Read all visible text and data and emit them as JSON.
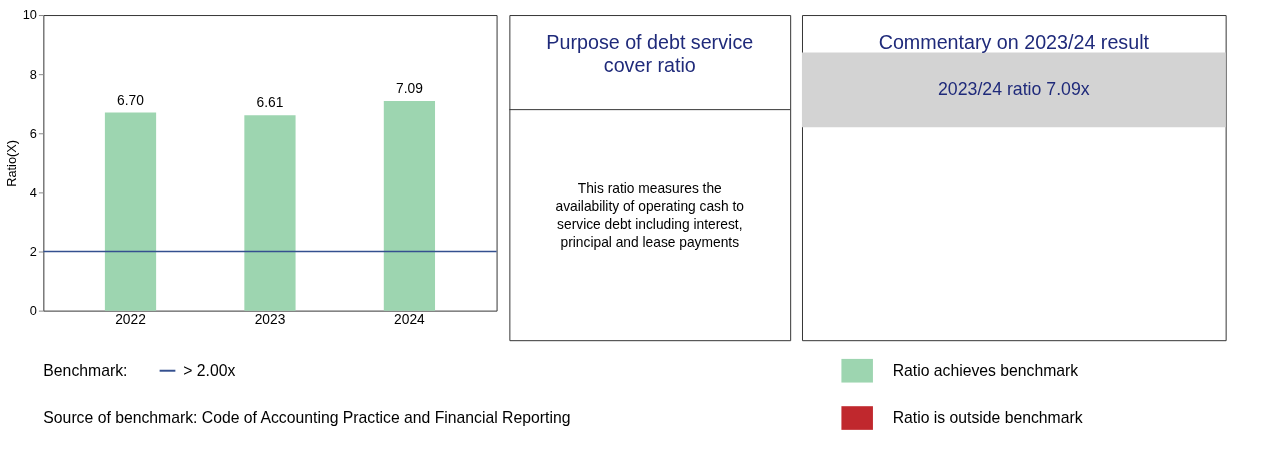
{
  "chart_data": [
    {
      "type": "bar",
      "categories": [
        "2022",
        "2023",
        "2024"
      ],
      "ylabel": "Ratio(X)",
      "ylim": [
        0,
        10
      ],
      "yticks": [
        0,
        2,
        4,
        6,
        8,
        10
      ],
      "grid": false,
      "legend": "bottom right",
      "series": [
        {
          "name": "Ratio achieves benchmark",
          "color": "#9dd5b0",
          "values": [
            6.7,
            6.61,
            7.09
          ],
          "value_labels": [
            "6.70",
            "6.61",
            "7.09"
          ]
        },
        {
          "name": "Ratio is outside benchmark",
          "color": "#c0282d",
          "values": [
            null,
            null,
            null
          ]
        }
      ],
      "ref_lines": [
        {
          "axis": "y",
          "value": 2,
          "label": "> 2.00x",
          "color": "#34508f"
        }
      ],
      "annotations": [
        "Benchmark:",
        "Source of benchmark: Code of Accounting Practice and Financial Reporting"
      ]
    },
    {
      "type": "other",
      "title": "Purpose of debt service cover ratio",
      "annotations": [
        "This ratio measures the availability of operating cash to service debt including interest, principal and lease payments"
      ]
    },
    {
      "type": "other",
      "title": "Commentary on 2023/24 result",
      "annotations": [
        "2023/24 ratio 7.09x"
      ]
    }
  ]
}
